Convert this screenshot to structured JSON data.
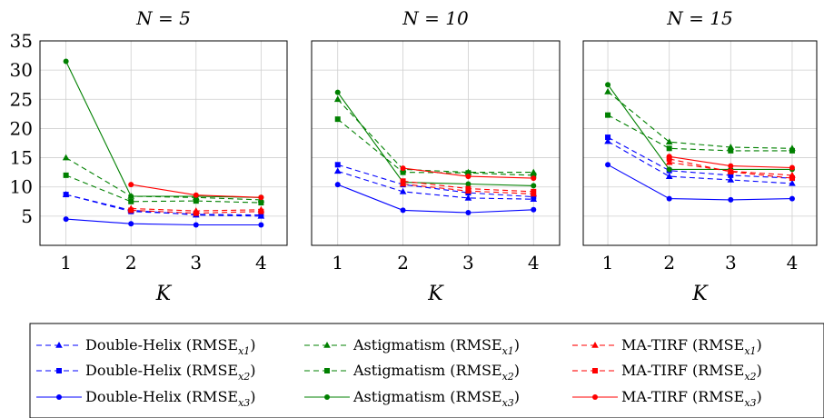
{
  "chart_data": [
    {
      "type": "line",
      "title": "N = 5",
      "xlabel": "K",
      "ylabel": "",
      "x": [
        1,
        2,
        3,
        4
      ],
      "xlim": [
        0.6,
        4.4
      ],
      "ylim": [
        0,
        35
      ],
      "yticks": [
        5,
        10,
        15,
        20,
        25,
        30,
        35
      ],
      "grid": true,
      "series": [
        {
          "name": "Double-Helix (RMSE_x1)",
          "color": "#0000ff",
          "dash": "dashed",
          "marker": "triangle",
          "values": [
            8.7,
            6.0,
            5.2,
            5.0
          ]
        },
        {
          "name": "Double-Helix (RMSE_x2)",
          "color": "#0000ff",
          "dash": "dashed",
          "marker": "square",
          "values": [
            8.7,
            5.8,
            5.3,
            5.2
          ]
        },
        {
          "name": "Double-Helix (RMSE_x3)",
          "color": "#0000ff",
          "dash": "solid",
          "marker": "circle",
          "values": [
            4.5,
            3.7,
            3.5,
            3.5
          ]
        },
        {
          "name": "Astigmatism (RMSE_x1)",
          "color": "#008000",
          "dash": "dashed",
          "marker": "triangle",
          "values": [
            15.0,
            8.4,
            8.2,
            7.8
          ]
        },
        {
          "name": "Astigmatism (RMSE_x2)",
          "color": "#008000",
          "dash": "dashed",
          "marker": "square",
          "values": [
            12.0,
            7.5,
            7.6,
            7.3
          ]
        },
        {
          "name": "Astigmatism (RMSE_x3)",
          "color": "#008000",
          "dash": "solid",
          "marker": "circle",
          "values": [
            31.5,
            8.4,
            8.4,
            8.2
          ]
        },
        {
          "name": "MA-TIRF (RMSE_x1)",
          "color": "#ff0000",
          "dash": "dashed",
          "marker": "triangle",
          "values": [
            null,
            6.3,
            5.9,
            6.1
          ]
        },
        {
          "name": "MA-TIRF (RMSE_x2)",
          "color": "#ff0000",
          "dash": "dashed",
          "marker": "square",
          "values": [
            null,
            6.0,
            5.5,
            5.8
          ]
        },
        {
          "name": "MA-TIRF (RMSE_x3)",
          "color": "#ff0000",
          "dash": "solid",
          "marker": "circle",
          "values": [
            null,
            10.4,
            8.6,
            8.2
          ]
        }
      ]
    },
    {
      "type": "line",
      "title": "N = 10",
      "xlabel": "K",
      "ylabel": "",
      "x": [
        1,
        2,
        3,
        4
      ],
      "xlim": [
        0.6,
        4.4
      ],
      "ylim": [
        0,
        35
      ],
      "grid": true,
      "series": [
        {
          "name": "Double-Helix (RMSE_x1)",
          "color": "#0000ff",
          "dash": "dashed",
          "marker": "triangle",
          "values": [
            12.7,
            9.2,
            8.1,
            7.9
          ]
        },
        {
          "name": "Double-Helix (RMSE_x2)",
          "color": "#0000ff",
          "dash": "dashed",
          "marker": "square",
          "values": [
            13.8,
            10.4,
            9.0,
            8.3
          ]
        },
        {
          "name": "Double-Helix (RMSE_x3)",
          "color": "#0000ff",
          "dash": "solid",
          "marker": "circle",
          "values": [
            10.4,
            6.0,
            5.6,
            6.1
          ]
        },
        {
          "name": "Astigmatism (RMSE_x1)",
          "color": "#008000",
          "dash": "dashed",
          "marker": "triangle",
          "values": [
            25.0,
            13.0,
            12.5,
            12.5
          ]
        },
        {
          "name": "Astigmatism (RMSE_x2)",
          "color": "#008000",
          "dash": "dashed",
          "marker": "square",
          "values": [
            21.6,
            12.5,
            12.4,
            12.0
          ]
        },
        {
          "name": "Astigmatism (RMSE_x3)",
          "color": "#008000",
          "dash": "solid",
          "marker": "circle",
          "values": [
            26.2,
            10.8,
            10.5,
            10.2
          ]
        },
        {
          "name": "MA-TIRF (RMSE_x1)",
          "color": "#ff0000",
          "dash": "dashed",
          "marker": "triangle",
          "values": [
            null,
            10.5,
            9.3,
            8.8
          ]
        },
        {
          "name": "MA-TIRF (RMSE_x2)",
          "color": "#ff0000",
          "dash": "dashed",
          "marker": "square",
          "values": [
            null,
            11.0,
            9.7,
            9.2
          ]
        },
        {
          "name": "MA-TIRF (RMSE_x3)",
          "color": "#ff0000",
          "dash": "solid",
          "marker": "circle",
          "values": [
            null,
            13.2,
            11.8,
            11.5
          ]
        }
      ]
    },
    {
      "type": "line",
      "title": "N = 15",
      "xlabel": "K",
      "ylabel": "",
      "x": [
        1,
        2,
        3,
        4
      ],
      "xlim": [
        0.6,
        4.4
      ],
      "ylim": [
        0,
        35
      ],
      "grid": true,
      "series": [
        {
          "name": "Double-Helix (RMSE_x1)",
          "color": "#0000ff",
          "dash": "dashed",
          "marker": "triangle",
          "values": [
            17.8,
            11.8,
            11.2,
            10.6
          ]
        },
        {
          "name": "Double-Helix (RMSE_x2)",
          "color": "#0000ff",
          "dash": "dashed",
          "marker": "square",
          "values": [
            18.5,
            12.8,
            12.0,
            11.5
          ]
        },
        {
          "name": "Double-Helix (RMSE_x3)",
          "color": "#0000ff",
          "dash": "solid",
          "marker": "circle",
          "values": [
            13.8,
            8.0,
            7.8,
            8.0
          ]
        },
        {
          "name": "Astigmatism (RMSE_x1)",
          "color": "#008000",
          "dash": "dashed",
          "marker": "triangle",
          "values": [
            26.3,
            17.7,
            16.8,
            16.6
          ]
        },
        {
          "name": "Astigmatism (RMSE_x2)",
          "color": "#008000",
          "dash": "dashed",
          "marker": "square",
          "values": [
            22.3,
            16.6,
            16.2,
            16.2
          ]
        },
        {
          "name": "Astigmatism (RMSE_x3)",
          "color": "#008000",
          "dash": "solid",
          "marker": "circle",
          "values": [
            27.5,
            13.0,
            13.0,
            13.0
          ]
        },
        {
          "name": "MA-TIRF (RMSE_x1)",
          "color": "#ff0000",
          "dash": "dashed",
          "marker": "triangle",
          "values": [
            null,
            14.2,
            12.7,
            12.0
          ]
        },
        {
          "name": "MA-TIRF (RMSE_x2)",
          "color": "#ff0000",
          "dash": "dashed",
          "marker": "square",
          "values": [
            null,
            14.8,
            12.6,
            11.5
          ]
        },
        {
          "name": "MA-TIRF (RMSE_x3)",
          "color": "#ff0000",
          "dash": "solid",
          "marker": "circle",
          "values": [
            null,
            15.2,
            13.6,
            13.3
          ]
        }
      ]
    }
  ],
  "legend": {
    "placement": "bottom",
    "items": [
      {
        "label": "Double-Helix (RMSE",
        "sub": "x1",
        "color": "#0000ff",
        "dash": "dashed",
        "marker": "triangle"
      },
      {
        "label": "Astigmatism (RMSE",
        "sub": "x1",
        "color": "#008000",
        "dash": "dashed",
        "marker": "triangle"
      },
      {
        "label": "MA-TIRF (RMSE",
        "sub": "x1",
        "color": "#ff0000",
        "dash": "dashed",
        "marker": "triangle"
      },
      {
        "label": "Double-Helix (RMSE",
        "sub": "x2",
        "color": "#0000ff",
        "dash": "dashed",
        "marker": "square"
      },
      {
        "label": "Astigmatism (RMSE",
        "sub": "x2",
        "color": "#008000",
        "dash": "dashed",
        "marker": "square"
      },
      {
        "label": "MA-TIRF (RMSE",
        "sub": "x2",
        "color": "#ff0000",
        "dash": "dashed",
        "marker": "square"
      },
      {
        "label": "Double-Helix (RMSE",
        "sub": "x3",
        "color": "#0000ff",
        "dash": "solid",
        "marker": "circle"
      },
      {
        "label": "Astigmatism (RMSE",
        "sub": "x3",
        "color": "#008000",
        "dash": "solid",
        "marker": "circle"
      },
      {
        "label": "MA-TIRF (RMSE",
        "sub": "x3",
        "color": "#ff0000",
        "dash": "solid",
        "marker": "circle"
      }
    ]
  }
}
